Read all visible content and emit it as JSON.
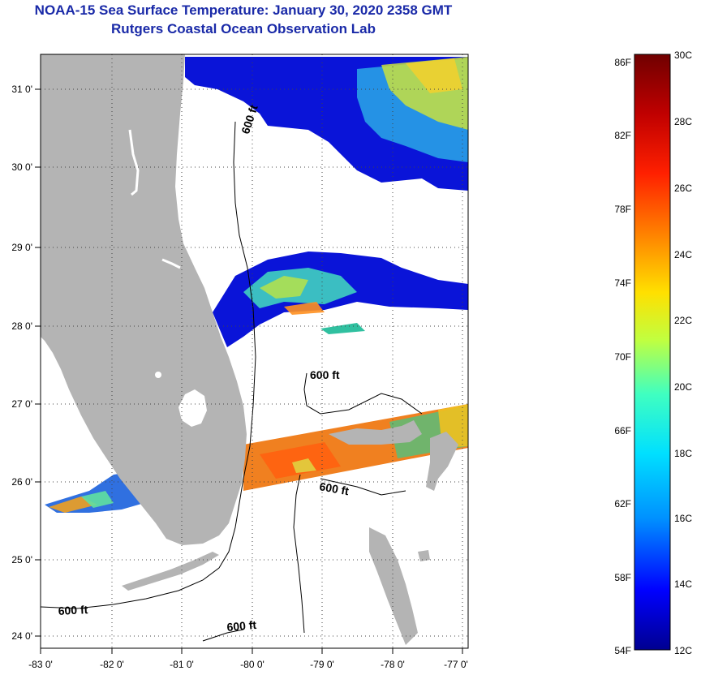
{
  "title": "NOAA-15 Sea Surface Temperature:  January 30, 2020 2358 GMT",
  "subtitle": "Rutgers Coastal Ocean Observation Lab",
  "map": {
    "lon_range": [
      -83.0,
      -76.8
    ],
    "lat_range": [
      23.8,
      31.4
    ],
    "lon_ticks": [
      "-83 0'",
      "-82 0'",
      "-81 0'",
      "-80 0'",
      "-79 0'",
      "-78 0'",
      "-77 0'"
    ],
    "lat_ticks": [
      "31 0'",
      "30 0'",
      "29 0'",
      "28 0'",
      "27 0'",
      "26 0'",
      "25 0'",
      "24 0'"
    ],
    "grid": "dotted",
    "land_color": "#b4b4b4",
    "contour_labels": [
      "600 ft",
      "600 ft",
      "600 ft",
      "600 ft",
      "600 ft"
    ]
  },
  "colorbar": {
    "fahrenheit": [
      "86F",
      "82F",
      "78F",
      "74F",
      "70F",
      "66F",
      "62F",
      "58F",
      "54F"
    ],
    "celsius": [
      "30C",
      "28C",
      "26C",
      "24C",
      "22C",
      "20C",
      "18C",
      "16C",
      "14C",
      "12C"
    ],
    "range_f": [
      54,
      86
    ],
    "range_c": [
      12,
      30
    ],
    "colors": [
      "#000090",
      "#0000ff",
      "#0090ff",
      "#00e0ff",
      "#40ffc0",
      "#c0ff40",
      "#ffe000",
      "#ff8000",
      "#ff2000",
      "#c00000",
      "#700000"
    ]
  }
}
